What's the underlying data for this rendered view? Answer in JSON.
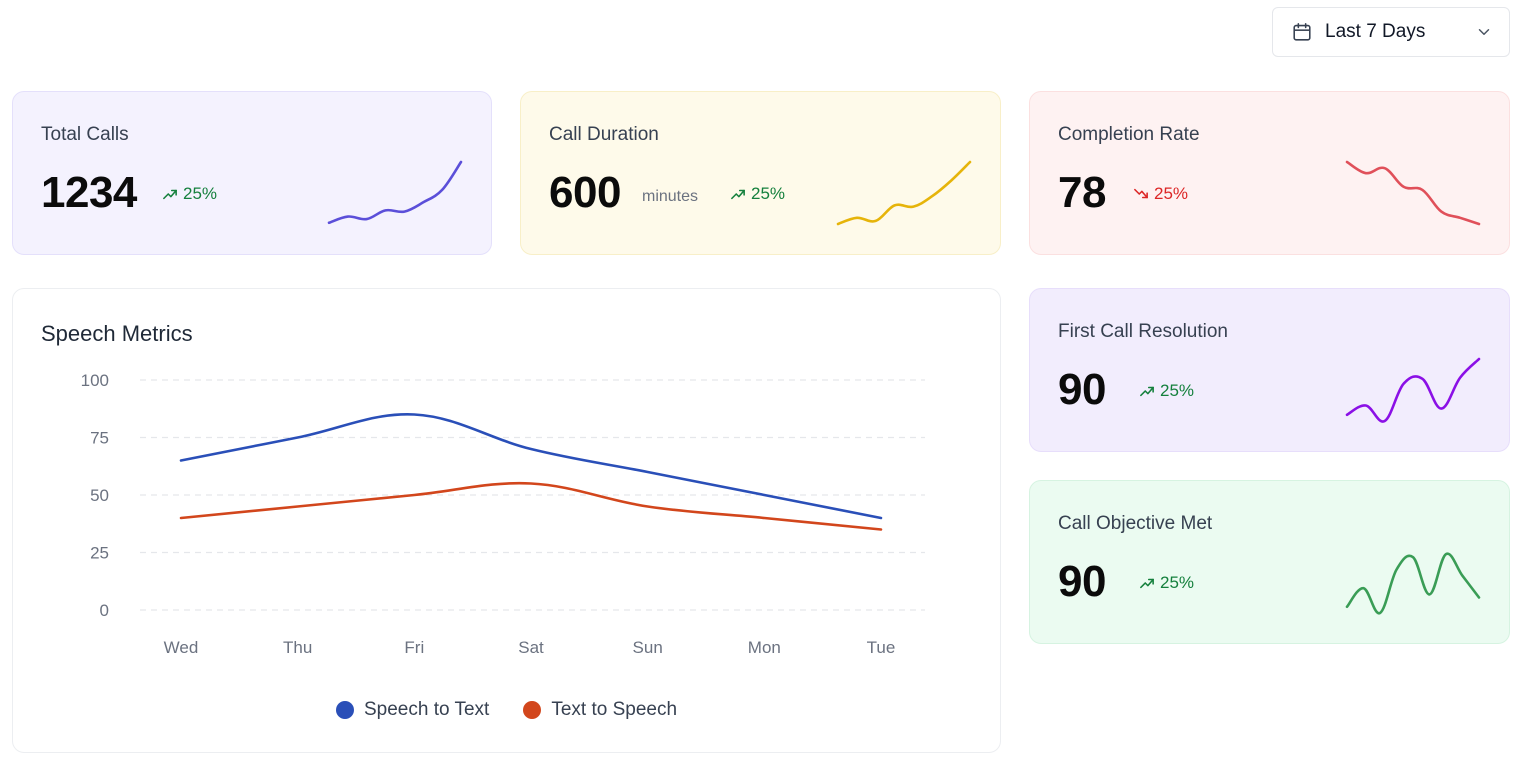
{
  "date_filter": {
    "label": "Last 7 Days",
    "icon": "calendar-icon",
    "chevron_icon": "chevron-down-icon"
  },
  "cards": [
    {
      "id": "total-calls",
      "title": "Total Calls",
      "value": "1234",
      "unit": "",
      "trend": "25%",
      "trend_direction": "up",
      "bg": "#f4f2fe",
      "border": "#e4e0fb",
      "line_color": "#5b4fd9",
      "trend_color": "#15803d",
      "sparkline": [
        0.02,
        0.12,
        0.08,
        0.22,
        0.2,
        0.35,
        0.55,
        1.0
      ]
    },
    {
      "id": "call-duration",
      "title": "Call Duration",
      "value": "600",
      "unit": "minutes",
      "trend": "25%",
      "trend_direction": "up",
      "bg": "#fefaea",
      "border": "#f8efc8",
      "line_color": "#e6b40a",
      "trend_color": "#15803d",
      "sparkline": [
        0.0,
        0.1,
        0.05,
        0.3,
        0.28,
        0.45,
        0.7,
        1.0
      ]
    },
    {
      "id": "completion-rate",
      "title": "Completion Rate",
      "value": "78",
      "unit": "",
      "trend": "25%",
      "trend_direction": "down",
      "bg": "#fef2f2",
      "border": "#fbe0e0",
      "line_color": "#e0505a",
      "trend_color": "#dc2626",
      "sparkline": [
        1.0,
        0.82,
        0.9,
        0.6,
        0.55,
        0.2,
        0.1,
        0.0
      ]
    },
    {
      "id": "first-call-resolution",
      "title": "First Call Resolution",
      "value": "90",
      "unit": "",
      "trend": "25%",
      "trend_direction": "up",
      "bg": "#f2edfd",
      "border": "#e7defb",
      "line_color": "#8b10e6",
      "trend_color": "#15803d",
      "sparkline": [
        0.1,
        0.25,
        0.0,
        0.6,
        0.68,
        0.2,
        0.7,
        1.0
      ]
    },
    {
      "id": "call-objective-met",
      "title": "Call Objective Met",
      "value": "90",
      "unit": "",
      "trend": "25%",
      "trend_direction": "up",
      "bg": "#ebfbf1",
      "border": "#d6f3e1",
      "line_color": "#3a9d56",
      "trend_color": "#15803d",
      "sparkline": [
        0.1,
        0.4,
        0.0,
        0.7,
        0.9,
        0.3,
        0.95,
        0.6,
        0.25
      ]
    }
  ],
  "speech_metrics": {
    "title": "Speech Metrics",
    "chart_data": {
      "type": "line",
      "categories": [
        "Wed",
        "Thu",
        "Fri",
        "Sat",
        "Sun",
        "Mon",
        "Tue"
      ],
      "series": [
        {
          "name": "Speech to Text",
          "color": "#2a4fb8",
          "values": [
            65,
            75,
            85,
            70,
            60,
            50,
            40
          ]
        },
        {
          "name": "Text to Speech",
          "color": "#d2461c",
          "values": [
            40,
            45,
            50,
            55,
            45,
            40,
            35
          ]
        }
      ],
      "ylim": [
        0,
        100
      ],
      "yticks": [
        "0",
        "25",
        "50",
        "75",
        "100"
      ],
      "grid": true,
      "legend": "bottom"
    }
  }
}
